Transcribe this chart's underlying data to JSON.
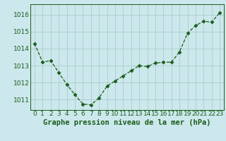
{
  "x": [
    0,
    1,
    2,
    3,
    4,
    5,
    6,
    7,
    8,
    9,
    10,
    11,
    12,
    13,
    14,
    15,
    16,
    17,
    18,
    19,
    20,
    21,
    22,
    23
  ],
  "y": [
    1014.3,
    1013.2,
    1013.3,
    1012.6,
    1011.9,
    1011.3,
    1010.75,
    1010.7,
    1011.1,
    1011.8,
    1012.1,
    1012.4,
    1012.7,
    1013.0,
    1012.95,
    1013.15,
    1013.2,
    1013.2,
    1013.8,
    1014.9,
    1015.35,
    1015.6,
    1015.55,
    1016.1
  ],
  "line_color": "#1a5c1a",
  "marker_color": "#1a5c1a",
  "bg_color": "#cce8ec",
  "grid_color": "#aacccc",
  "xlabel": "Graphe pression niveau de la mer (hPa)",
  "xlabel_color": "#1a5c1a",
  "tick_color": "#1a5c1a",
  "ylim_min": 1010.4,
  "ylim_max": 1016.6,
  "yticks": [
    1011,
    1012,
    1013,
    1014,
    1015,
    1016
  ],
  "xlabel_fontsize": 7.5,
  "tick_fontsize": 6.5
}
